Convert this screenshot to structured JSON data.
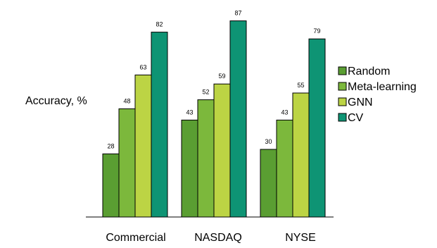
{
  "chart_data": {
    "type": "bar",
    "title": "",
    "xlabel": "",
    "ylabel": "Accuracy, %",
    "categories": [
      "Commercial",
      "NASDAQ",
      "NYSE"
    ],
    "series": [
      {
        "name": "Random",
        "color": "#5a9e32",
        "values": [
          28,
          43,
          30
        ]
      },
      {
        "name": "Meta-learning",
        "color": "#7cb83c",
        "values": [
          48,
          52,
          43
        ]
      },
      {
        "name": "GNN",
        "color": "#bcd444",
        "values": [
          63,
          59,
          55
        ]
      },
      {
        "name": "CV",
        "color": "#0e9474",
        "values": [
          82,
          87,
          79
        ]
      }
    ],
    "ylim": [
      0,
      90
    ],
    "grid": false,
    "legend": "right"
  }
}
